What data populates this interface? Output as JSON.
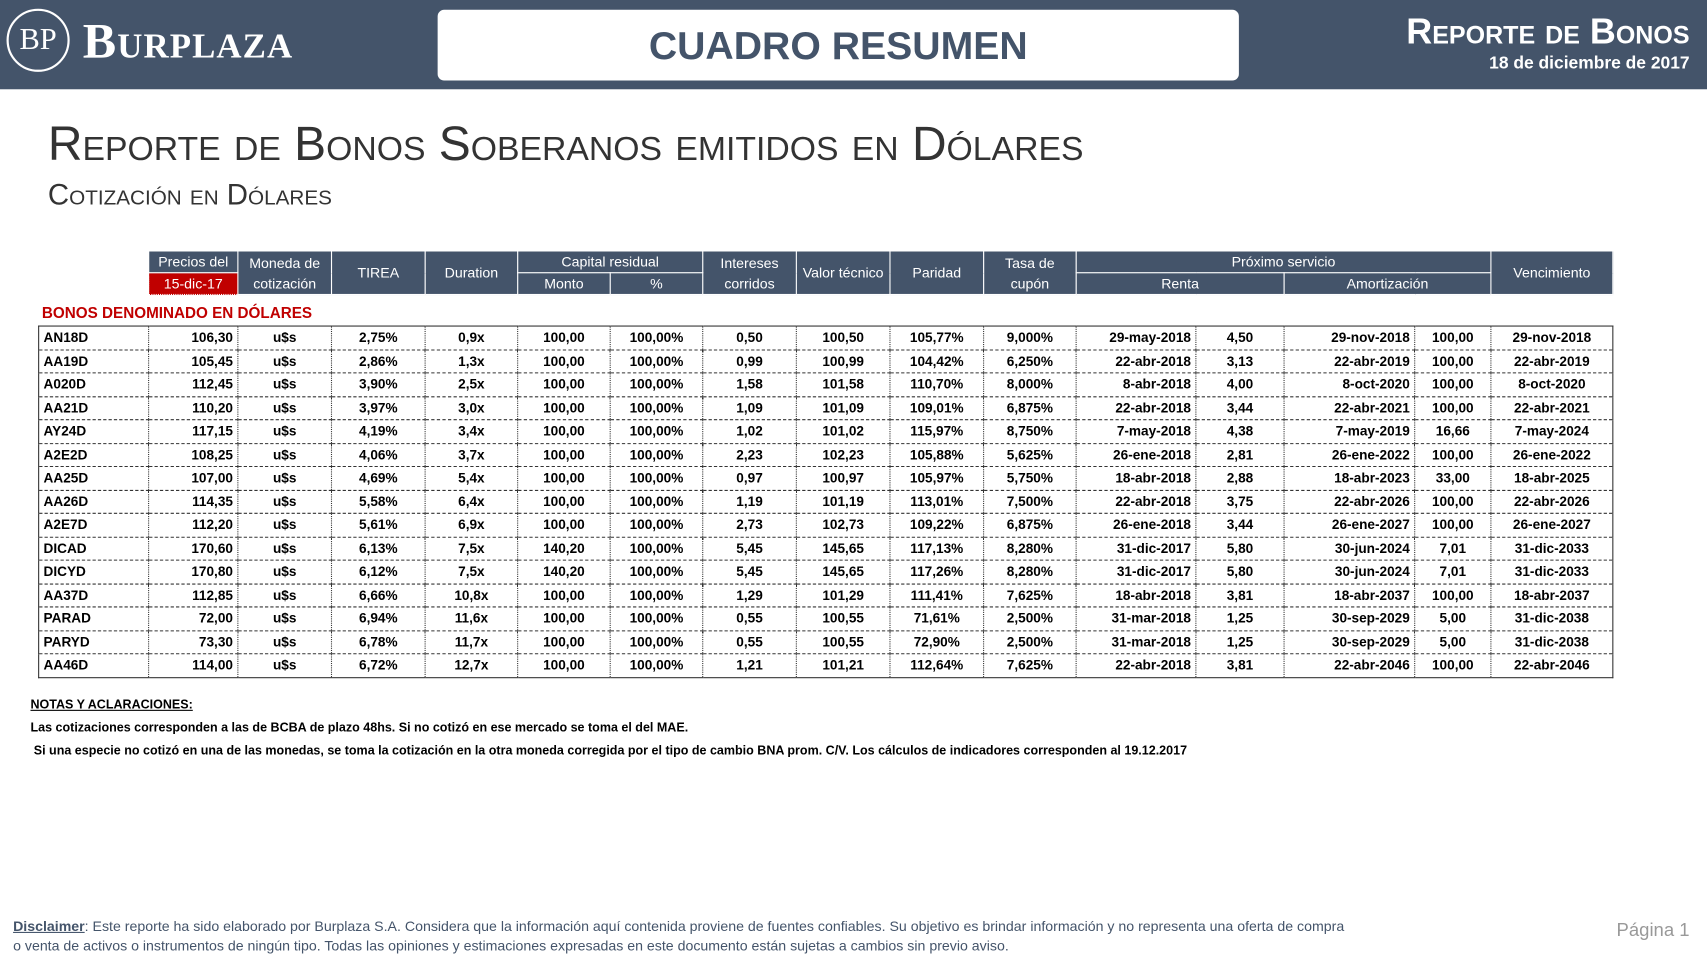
{
  "header": {
    "logo_mark": "BP",
    "logo_text": "Burplaza",
    "banner": "CUADRO RESUMEN",
    "report_title": "Reporte de Bonos",
    "report_date": "18 de diciembre de 2017"
  },
  "title": "Reporte de Bonos Soberanos emitidos en Dólares",
  "subtitle": "Cotización en Dólares",
  "table": {
    "head": {
      "precios": "Precios del",
      "fecha": "15-dic-17",
      "moneda": "Moneda de cotización",
      "tirea": "TIREA",
      "duration": "Duration",
      "capital": "Capital residual",
      "monto": "Monto",
      "pct": "%",
      "intereses": "Intereses corridos",
      "valor": "Valor técnico",
      "paridad": "Paridad",
      "tasa": "Tasa de cupón",
      "servicio": "Próximo servicio",
      "renta": "Renta",
      "amortizacion": "Amortización",
      "vencimiento": "Vencimiento"
    },
    "section": "BONOS DENOMINADO EN DÓLARES",
    "rows": [
      [
        "AN18D",
        "106,30",
        "u$s",
        "2,75%",
        "0,9x",
        "100,00",
        "100,00%",
        "0,50",
        "100,50",
        "105,77%",
        "9,000%",
        "29-may-2018",
        "4,50",
        "29-nov-2018",
        "100,00",
        "29-nov-2018"
      ],
      [
        "AA19D",
        "105,45",
        "u$s",
        "2,86%",
        "1,3x",
        "100,00",
        "100,00%",
        "0,99",
        "100,99",
        "104,42%",
        "6,250%",
        "22-abr-2018",
        "3,13",
        "22-abr-2019",
        "100,00",
        "22-abr-2019"
      ],
      [
        "A020D",
        "112,45",
        "u$s",
        "3,90%",
        "2,5x",
        "100,00",
        "100,00%",
        "1,58",
        "101,58",
        "110,70%",
        "8,000%",
        "8-abr-2018",
        "4,00",
        "8-oct-2020",
        "100,00",
        "8-oct-2020"
      ],
      [
        "AA21D",
        "110,20",
        "u$s",
        "3,97%",
        "3,0x",
        "100,00",
        "100,00%",
        "1,09",
        "101,09",
        "109,01%",
        "6,875%",
        "22-abr-2018",
        "3,44",
        "22-abr-2021",
        "100,00",
        "22-abr-2021"
      ],
      [
        "AY24D",
        "117,15",
        "u$s",
        "4,19%",
        "3,4x",
        "100,00",
        "100,00%",
        "1,02",
        "101,02",
        "115,97%",
        "8,750%",
        "7-may-2018",
        "4,38",
        "7-may-2019",
        "16,66",
        "7-may-2024"
      ],
      [
        "A2E2D",
        "108,25",
        "u$s",
        "4,06%",
        "3,7x",
        "100,00",
        "100,00%",
        "2,23",
        "102,23",
        "105,88%",
        "5,625%",
        "26-ene-2018",
        "2,81",
        "26-ene-2022",
        "100,00",
        "26-ene-2022"
      ],
      [
        "AA25D",
        "107,00",
        "u$s",
        "4,69%",
        "5,4x",
        "100,00",
        "100,00%",
        "0,97",
        "100,97",
        "105,97%",
        "5,750%",
        "18-abr-2018",
        "2,88",
        "18-abr-2023",
        "33,00",
        "18-abr-2025"
      ],
      [
        "AA26D",
        "114,35",
        "u$s",
        "5,58%",
        "6,4x",
        "100,00",
        "100,00%",
        "1,19",
        "101,19",
        "113,01%",
        "7,500%",
        "22-abr-2018",
        "3,75",
        "22-abr-2026",
        "100,00",
        "22-abr-2026"
      ],
      [
        "A2E7D",
        "112,20",
        "u$s",
        "5,61%",
        "6,9x",
        "100,00",
        "100,00%",
        "2,73",
        "102,73",
        "109,22%",
        "6,875%",
        "26-ene-2018",
        "3,44",
        "26-ene-2027",
        "100,00",
        "26-ene-2027"
      ],
      [
        "DICAD",
        "170,60",
        "u$s",
        "6,13%",
        "7,5x",
        "140,20",
        "100,00%",
        "5,45",
        "145,65",
        "117,13%",
        "8,280%",
        "31-dic-2017",
        "5,80",
        "30-jun-2024",
        "7,01",
        "31-dic-2033"
      ],
      [
        "DICYD",
        "170,80",
        "u$s",
        "6,12%",
        "7,5x",
        "140,20",
        "100,00%",
        "5,45",
        "145,65",
        "117,26%",
        "8,280%",
        "31-dic-2017",
        "5,80",
        "30-jun-2024",
        "7,01",
        "31-dic-2033"
      ],
      [
        "AA37D",
        "112,85",
        "u$s",
        "6,66%",
        "10,8x",
        "100,00",
        "100,00%",
        "1,29",
        "101,29",
        "111,41%",
        "7,625%",
        "18-abr-2018",
        "3,81",
        "18-abr-2037",
        "100,00",
        "18-abr-2037"
      ],
      [
        "PARAD",
        "72,00",
        "u$s",
        "6,94%",
        "11,6x",
        "100,00",
        "100,00%",
        "0,55",
        "100,55",
        "71,61%",
        "2,500%",
        "31-mar-2018",
        "1,25",
        "30-sep-2029",
        "5,00",
        "31-dic-2038"
      ],
      [
        "PARYD",
        "73,30",
        "u$s",
        "6,78%",
        "11,7x",
        "100,00",
        "100,00%",
        "0,55",
        "100,55",
        "72,90%",
        "2,500%",
        "31-mar-2018",
        "1,25",
        "30-sep-2029",
        "5,00",
        "31-dic-2038"
      ],
      [
        "AA46D",
        "114,00",
        "u$s",
        "6,72%",
        "12,7x",
        "100,00",
        "100,00%",
        "1,21",
        "101,21",
        "112,64%",
        "7,625%",
        "22-abr-2018",
        "3,81",
        "22-abr-2046",
        "100,00",
        "22-abr-2046"
      ]
    ]
  },
  "notes": {
    "heading": "NOTAS Y ACLARACIONES:",
    "lines": [
      "Las cotizaciones corresponden a las de BCBA de plazo 48hs. Si no cotizó en ese mercado se toma el del MAE.",
      "Si una especie no cotizó en una de las monedas, se toma la cotización en la otra moneda corregida por el tipo de cambio BNA prom. C/V. Los cálculos de indicadores corresponden al 19.12.2017"
    ]
  },
  "footer": {
    "disclaimer_label": "Disclaimer",
    "disclaimer": ": Este reporte ha sido elaborado por Burplaza S.A. Considera que la información aquí contenida proviene de fuentes confiables. Su objetivo es brindar información y no representa una oferta de compra o venta de activos o instrumentos de ningún tipo. Todas las opiniones y estimaciones expresadas en este documento están sujetas a cambios sin previo aviso.",
    "page": "Página 1"
  }
}
